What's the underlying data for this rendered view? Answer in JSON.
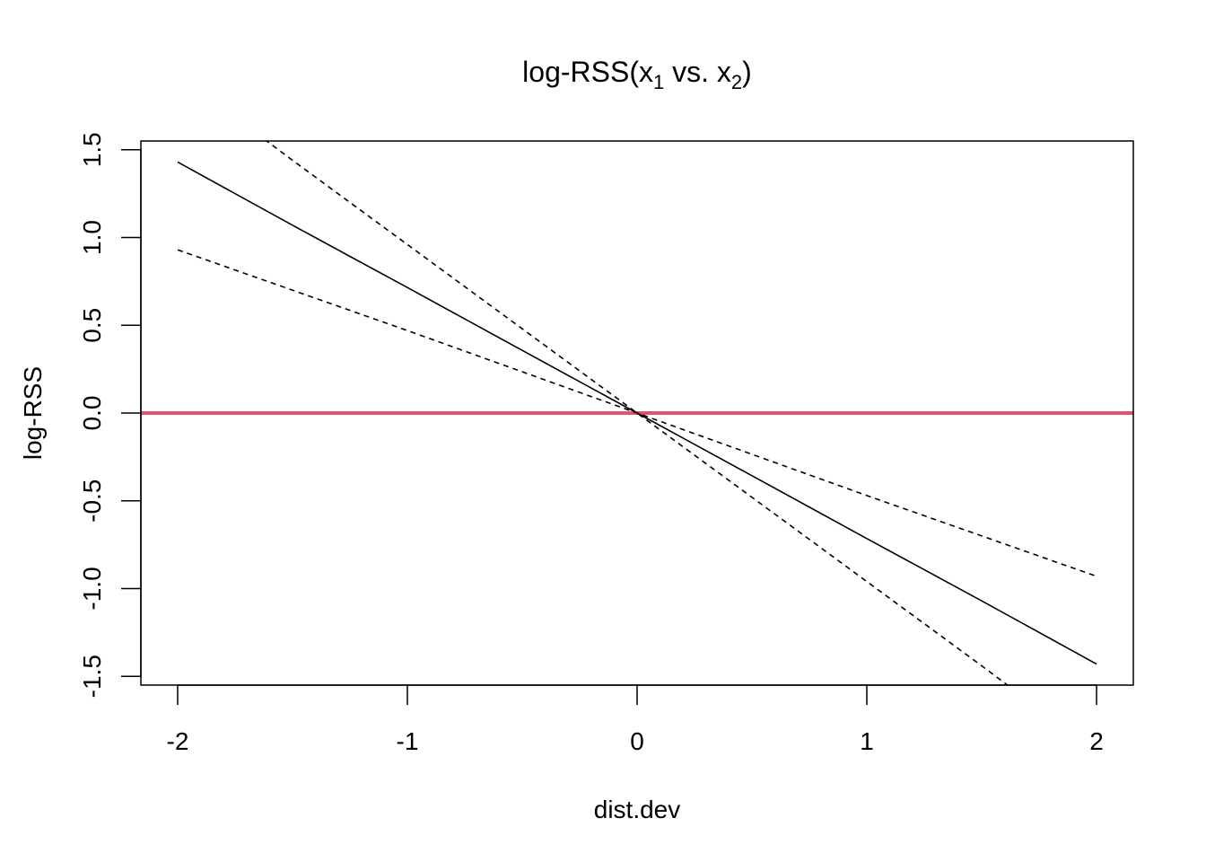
{
  "chart_data": {
    "type": "line",
    "title": {
      "prefix": "log-RSS(x",
      "sub1": "1",
      "middle": " vs. x",
      "sub2": "2",
      "suffix": ")"
    },
    "xlabel": "dist.dev",
    "ylabel": "log-RSS",
    "xlim": [
      -2.16,
      2.16
    ],
    "ylim": [
      -1.55,
      1.55
    ],
    "x_ticks": [
      -2,
      -1,
      0,
      1,
      2
    ],
    "x_tick_labels": [
      "-2",
      "-1",
      "0",
      "1",
      "2"
    ],
    "y_ticks": [
      -1.5,
      -1.0,
      -0.5,
      0.0,
      0.5,
      1.0,
      1.5
    ],
    "y_tick_labels": [
      "-1.5",
      "-1.0",
      "-0.5",
      "0.0",
      "0.5",
      "1.0",
      "1.5"
    ],
    "grid": false,
    "series": [
      {
        "style": "solid",
        "color": "#000000",
        "x": [
          -2,
          -1.5,
          -1,
          -0.5,
          0,
          0.5,
          1,
          1.5,
          2
        ],
        "y": [
          1.43,
          1.07,
          0.715,
          0.357,
          0,
          -0.357,
          -0.715,
          -1.07,
          -1.43
        ]
      },
      {
        "style": "dashed",
        "color": "#000000",
        "x": [
          -2,
          -1.5,
          -1,
          -0.5,
          0,
          0.5,
          1,
          1.5,
          2
        ],
        "y": [
          1.93,
          1.44,
          0.96,
          0.48,
          0,
          -0.48,
          -0.96,
          -1.44,
          -1.93
        ]
      },
      {
        "style": "dashed",
        "color": "#000000",
        "x": [
          -2,
          -1.5,
          -1,
          -0.5,
          0,
          0.5,
          1,
          1.5,
          2
        ],
        "y": [
          0.93,
          0.7,
          0.47,
          0.235,
          0,
          -0.235,
          -0.47,
          -0.7,
          -0.93
        ]
      }
    ],
    "reference_line": {
      "y": 0,
      "color": "#DF536B"
    }
  }
}
